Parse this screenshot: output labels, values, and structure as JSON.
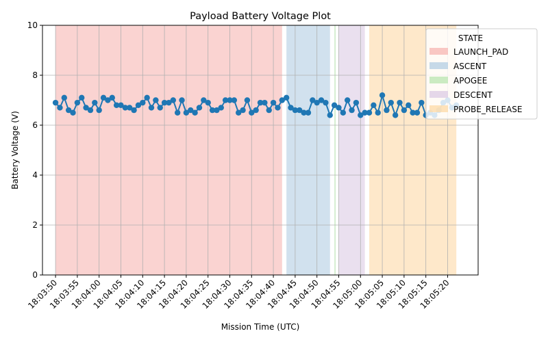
{
  "chart_data": {
    "type": "line",
    "title": "Payload Battery Voltage Plot",
    "xlabel": "Mission Time (UTC)",
    "ylabel": "Battery Voltage (V)",
    "ylim": [
      0,
      10
    ],
    "yticks": [
      0,
      2,
      4,
      6,
      8,
      10
    ],
    "xlim": [
      "18:03:47",
      "18:05:27"
    ],
    "xticks": [
      "18:03:50",
      "18:03:55",
      "18:04:00",
      "18:04:05",
      "18:04:10",
      "18:04:15",
      "18:04:20",
      "18:04:25",
      "18:04:30",
      "18:04:35",
      "18:04:40",
      "18:04:45",
      "18:04:50",
      "18:04:55",
      "18:05:00",
      "18:05:05",
      "18:05:10",
      "18:05:15",
      "18:05:20"
    ],
    "grid": true,
    "line_color": "#1f77b4",
    "legend": {
      "title": "STATE",
      "placement": "upper-right, partly outside plot"
    },
    "states": [
      {
        "name": "LAUNCH_PAD",
        "start": "18:03:50",
        "end": "18:04:42",
        "color": "#f7b6b2"
      },
      {
        "name": "ASCENT",
        "start": "18:04:43",
        "end": "18:04:53",
        "color": "#b3cde3"
      },
      {
        "name": "APOGEE",
        "start": "18:04:54",
        "end": "18:04:54",
        "color": "#b9e5b0"
      },
      {
        "name": "DESCENT",
        "start": "18:04:55",
        "end": "18:05:01",
        "color": "#dccbe4"
      },
      {
        "name": "PROBE_RELEASE",
        "start": "18:05:02",
        "end": "18:05:22",
        "color": "#fed9a6"
      }
    ],
    "x": [
      "18:03:50",
      "18:03:51",
      "18:03:52",
      "18:03:53",
      "18:03:54",
      "18:03:55",
      "18:03:56",
      "18:03:57",
      "18:03:58",
      "18:03:59",
      "18:04:00",
      "18:04:01",
      "18:04:02",
      "18:04:03",
      "18:04:04",
      "18:04:05",
      "18:04:06",
      "18:04:07",
      "18:04:08",
      "18:04:09",
      "18:04:10",
      "18:04:11",
      "18:04:12",
      "18:04:13",
      "18:04:14",
      "18:04:15",
      "18:04:16",
      "18:04:17",
      "18:04:18",
      "18:04:19",
      "18:04:20",
      "18:04:21",
      "18:04:22",
      "18:04:23",
      "18:04:24",
      "18:04:25",
      "18:04:26",
      "18:04:27",
      "18:04:28",
      "18:04:29",
      "18:04:30",
      "18:04:31",
      "18:04:32",
      "18:04:33",
      "18:04:34",
      "18:04:35",
      "18:04:36",
      "18:04:37",
      "18:04:38",
      "18:04:39",
      "18:04:40",
      "18:04:41",
      "18:04:42",
      "18:04:43",
      "18:04:44",
      "18:04:45",
      "18:04:46",
      "18:04:47",
      "18:04:48",
      "18:04:49",
      "18:04:50",
      "18:04:51",
      "18:04:52",
      "18:04:53",
      "18:04:54",
      "18:04:55",
      "18:04:56",
      "18:04:57",
      "18:04:58",
      "18:04:59",
      "18:05:00",
      "18:05:01",
      "18:05:02",
      "18:05:03",
      "18:05:04",
      "18:05:05",
      "18:05:06",
      "18:05:07",
      "18:05:08",
      "18:05:09",
      "18:05:10",
      "18:05:11",
      "18:05:12",
      "18:05:13",
      "18:05:14",
      "18:05:15",
      "18:05:16",
      "18:05:17",
      "18:05:18",
      "18:05:19",
      "18:05:20",
      "18:05:21",
      "18:05:22"
    ],
    "series": [
      {
        "values": [
          6.9,
          6.7,
          7.1,
          6.6,
          6.5,
          6.9,
          7.1,
          6.7,
          6.6,
          6.9,
          6.6,
          7.1,
          7.0,
          7.1,
          6.8,
          6.8,
          6.7,
          6.7,
          6.6,
          6.8,
          6.9,
          7.1,
          6.7,
          7.0,
          6.7,
          6.9,
          6.9,
          7.0,
          6.5,
          7.0,
          6.5,
          6.6,
          6.5,
          6.7,
          7.0,
          6.9,
          6.6,
          6.6,
          6.7,
          7.0,
          7.0,
          7.0,
          6.5,
          6.6,
          7.0,
          6.5,
          6.6,
          6.9,
          6.9,
          6.6,
          6.9,
          6.7,
          7.0,
          7.1,
          6.7,
          6.6,
          6.6,
          6.5,
          6.5,
          7.0,
          6.9,
          7.0,
          6.9,
          6.4,
          6.8,
          6.7,
          6.5,
          7.0,
          6.6,
          6.9,
          6.4,
          6.5,
          6.5,
          6.8,
          6.5,
          7.2,
          6.6,
          6.9,
          6.4,
          6.9,
          6.6,
          6.8,
          6.5,
          6.5,
          6.9,
          6.4,
          6.5,
          6.4,
          6.6,
          6.9,
          7.0,
          6.7,
          6.8
        ]
      }
    ]
  }
}
